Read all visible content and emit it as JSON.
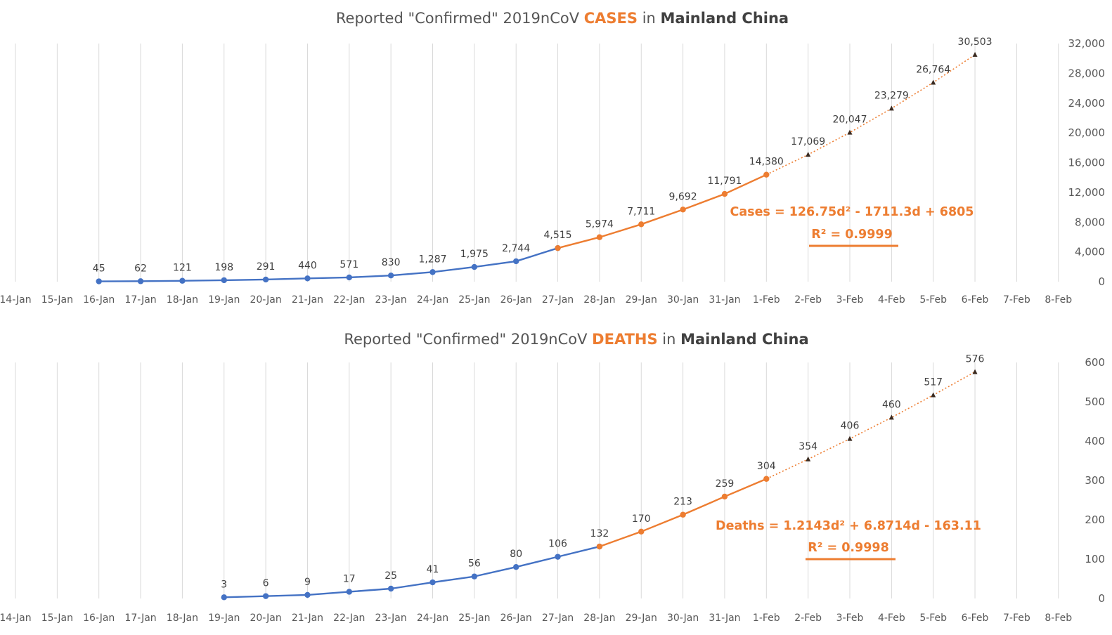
{
  "chart_data": [
    {
      "id": "cases",
      "type": "line",
      "title": {
        "prefix": "Reported \"Confirmed\" 2019nCoV ",
        "highlight": "CASES",
        "mid": " in ",
        "bold": "Mainland China"
      },
      "categories": [
        "14-Jan",
        "15-Jan",
        "16-Jan",
        "17-Jan",
        "18-Jan",
        "19-Jan",
        "20-Jan",
        "21-Jan",
        "22-Jan",
        "23-Jan",
        "24-Jan",
        "25-Jan",
        "26-Jan",
        "27-Jan",
        "28-Jan",
        "29-Jan",
        "30-Jan",
        "31-Jan",
        "1-Feb",
        "2-Feb",
        "3-Feb",
        "4-Feb",
        "5-Feb",
        "6-Feb",
        "7-Feb",
        "8-Feb"
      ],
      "ylim": [
        0,
        32000
      ],
      "yticks": [
        0,
        4000,
        8000,
        12000,
        16000,
        20000,
        24000,
        28000,
        32000
      ],
      "ytick_labels": [
        "0",
        "4,000",
        "8,000",
        "12,000",
        "16,000",
        "20,000",
        "24,000",
        "28,000",
        "32,000"
      ],
      "axis_side": "right",
      "grid": true,
      "series": [
        {
          "kind": "observed-early",
          "color": "#4472c4",
          "x": [
            "16-Jan",
            "17-Jan",
            "18-Jan",
            "19-Jan",
            "20-Jan",
            "21-Jan",
            "22-Jan",
            "23-Jan",
            "24-Jan",
            "25-Jan",
            "26-Jan",
            "27-Jan"
          ],
          "values": [
            45,
            62,
            121,
            198,
            291,
            440,
            571,
            830,
            1287,
            1975,
            2744,
            4515
          ],
          "labels": [
            "45",
            "62",
            "121",
            "198",
            "291",
            "440",
            "571",
            "830",
            "1,287",
            "1,975",
            "2,744",
            null
          ]
        },
        {
          "kind": "observed-late",
          "color": "#ed7d31",
          "x": [
            "27-Jan",
            "28-Jan",
            "29-Jan",
            "30-Jan",
            "31-Jan",
            "1-Feb"
          ],
          "values": [
            4515,
            5974,
            7711,
            9692,
            11791,
            14380
          ],
          "labels": [
            "4,515",
            "5,974",
            "7,711",
            "9,692",
            "11,791",
            "14,380"
          ]
        },
        {
          "kind": "projected",
          "color": "#ed7d31",
          "x": [
            "1-Feb",
            "2-Feb",
            "3-Feb",
            "4-Feb",
            "5-Feb",
            "6-Feb"
          ],
          "values": [
            14380,
            17069,
            20047,
            23279,
            26764,
            30503
          ],
          "labels": [
            null,
            "17,069",
            "20,047",
            "23,279",
            "26,764",
            "30,503"
          ]
        }
      ],
      "annotation": {
        "equation": "Cases = 126.75d² - 1711.3d + 6805",
        "r2": "R² = 0.9999"
      }
    },
    {
      "id": "deaths",
      "type": "line",
      "title": {
        "prefix": "Reported \"Confirmed\" 2019nCoV ",
        "highlight": "DEATHS",
        "mid": " in ",
        "bold": "Mainland China"
      },
      "categories": [
        "14-Jan",
        "15-Jan",
        "16-Jan",
        "17-Jan",
        "18-Jan",
        "19-Jan",
        "20-Jan",
        "21-Jan",
        "22-Jan",
        "23-Jan",
        "24-Jan",
        "25-Jan",
        "26-Jan",
        "27-Jan",
        "28-Jan",
        "29-Jan",
        "30-Jan",
        "31-Jan",
        "1-Feb",
        "2-Feb",
        "3-Feb",
        "4-Feb",
        "5-Feb",
        "6-Feb",
        "7-Feb",
        "8-Feb"
      ],
      "ylim": [
        0,
        600
      ],
      "yticks": [
        0,
        100,
        200,
        300,
        400,
        500,
        600
      ],
      "ytick_labels": [
        "0",
        "100",
        "200",
        "300",
        "400",
        "500",
        "600"
      ],
      "axis_side": "right",
      "grid": true,
      "series": [
        {
          "kind": "observed-early",
          "color": "#4472c4",
          "x": [
            "19-Jan",
            "20-Jan",
            "21-Jan",
            "22-Jan",
            "23-Jan",
            "24-Jan",
            "25-Jan",
            "26-Jan",
            "27-Jan",
            "28-Jan"
          ],
          "values": [
            3,
            6,
            9,
            17,
            25,
            41,
            56,
            80,
            106,
            132
          ],
          "labels": [
            "3",
            "6",
            "9",
            "17",
            "25",
            "41",
            "56",
            "80",
            "106",
            null
          ]
        },
        {
          "kind": "observed-late",
          "color": "#ed7d31",
          "x": [
            "28-Jan",
            "29-Jan",
            "30-Jan",
            "31-Jan",
            "1-Feb"
          ],
          "values": [
            132,
            170,
            213,
            259,
            304
          ],
          "labels": [
            "132",
            "170",
            "213",
            "259",
            "304"
          ]
        },
        {
          "kind": "projected",
          "color": "#ed7d31",
          "x": [
            "1-Feb",
            "2-Feb",
            "3-Feb",
            "4-Feb",
            "5-Feb",
            "6-Feb"
          ],
          "values": [
            304,
            354,
            406,
            460,
            517,
            576
          ],
          "labels": [
            null,
            "354",
            "406",
            "460",
            "517",
            "576"
          ]
        }
      ],
      "annotation": {
        "equation": "Deaths = 1.2143d² + 6.8714d - 163.11",
        "r2": "R² = 0.9998"
      }
    }
  ]
}
